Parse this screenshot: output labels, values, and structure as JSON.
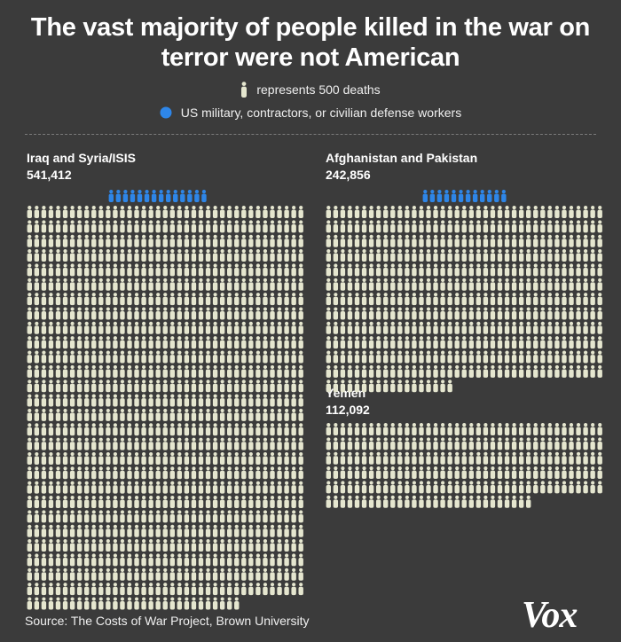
{
  "chart_data": {
    "type": "pictogram",
    "title_line1": "The vast majority of people killed in the war on",
    "title_line2": "terror were not American",
    "legend": {
      "icon_label": "represents 500 deaths",
      "us_label": "US military, contractors, or civilian defense workers"
    },
    "unit": 500,
    "panels": [
      {
        "key": "iraq",
        "name": "Iraq and Syria/ISIS",
        "total_label": "541,412",
        "total": 541412,
        "us_icons": 14,
        "civilian_icons": 1083
      },
      {
        "key": "afghanistan",
        "name": "Afghanistan and Pakistan",
        "total_label": "242,856",
        "total": 242856,
        "us_icons": 12,
        "civilian_icons": 486
      },
      {
        "key": "yemen",
        "name": "Yemen",
        "total_label": "112,092",
        "total": 112092,
        "us_icons": 0,
        "civilian_icons": 224
      }
    ],
    "colors": {
      "background": "#3b3b3b",
      "person": "#e5e6cf",
      "us": "#2e86e8"
    }
  },
  "footer": {
    "source": "Source: The Costs of War Project, Brown University",
    "logo": "Vox"
  }
}
